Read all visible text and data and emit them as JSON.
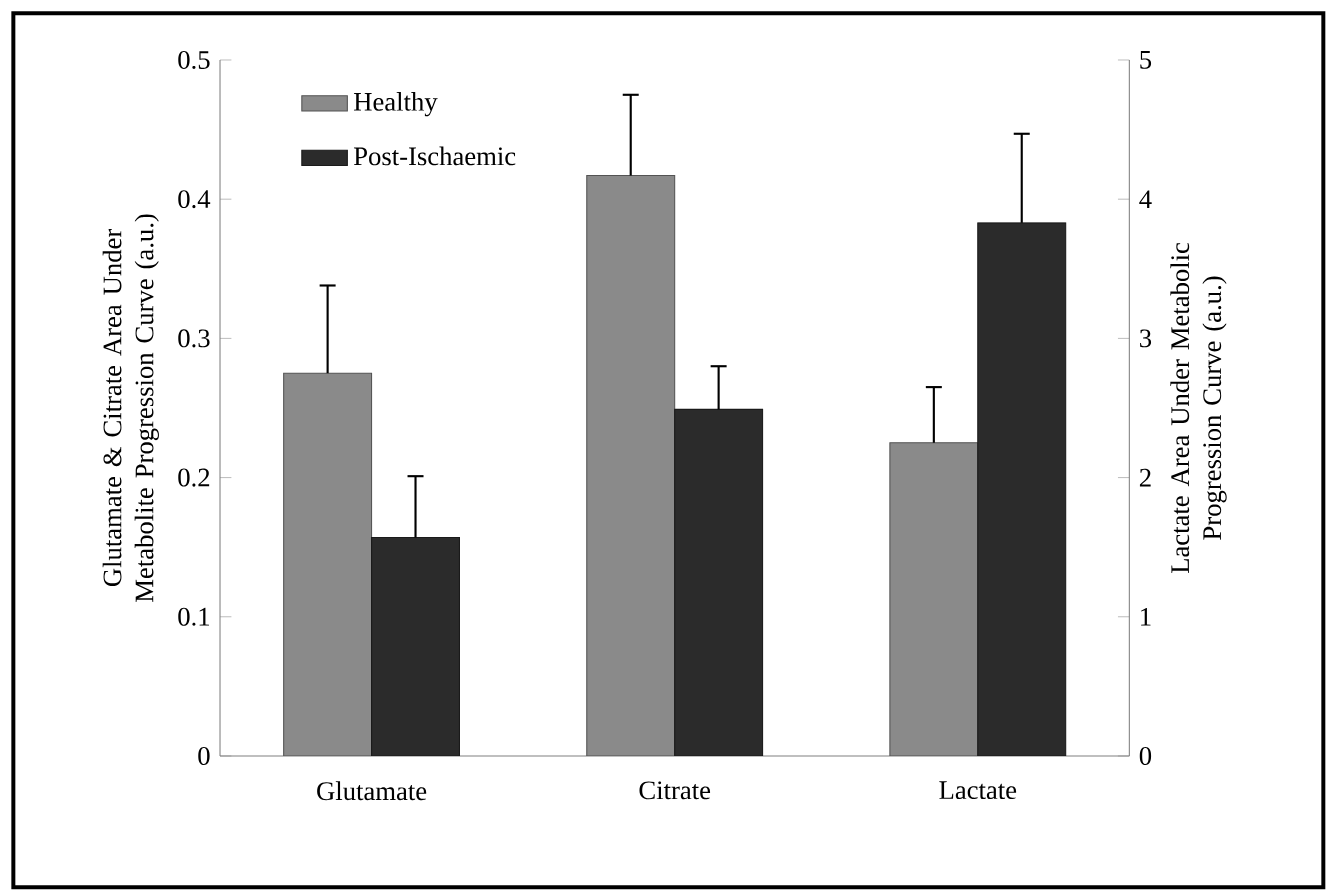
{
  "chart_data": {
    "type": "bar",
    "categories": [
      "Glutamate",
      "Citrate",
      "Lactate"
    ],
    "ylabel": "Glutamate & Citrate Area Under Metabolite Progression Curve (a.u.)",
    "y2label": "Lactate Area Under Metabolic Progression Curve (a.u.)",
    "ylim": [
      0,
      0.5
    ],
    "yticks": [
      0,
      0.1,
      0.2,
      0.3,
      0.4,
      0.5
    ],
    "y2lim": [
      0,
      5
    ],
    "y2ticks": [
      0,
      1,
      2,
      3,
      4,
      5
    ],
    "legend": "top left",
    "series": [
      {
        "name": "Healthy",
        "color": "#8a8a8a",
        "values": [
          0.275,
          0.417,
          null
        ],
        "errors": [
          [
            0.275,
            0.338
          ],
          [
            0.417,
            0.475
          ],
          null
        ]
      },
      {
        "name": "Post-Ischaemic",
        "color": "#2b2b2b",
        "values": [
          0.157,
          0.249,
          null
        ],
        "errors": [
          [
            0.157,
            0.201
          ],
          [
            0.249,
            0.28
          ],
          null
        ]
      },
      {
        "color": "#8a8a8a",
        "axis": "y2",
        "values": [
          null,
          null,
          2.25
        ],
        "errors": [
          null,
          null,
          [
            2.25,
            2.65
          ]
        ]
      },
      {
        "color": "#2b2b2b",
        "axis": "y2",
        "values": [
          null,
          null,
          3.83
        ],
        "errors": [
          null,
          null,
          [
            3.83,
            4.47
          ]
        ]
      }
    ]
  }
}
